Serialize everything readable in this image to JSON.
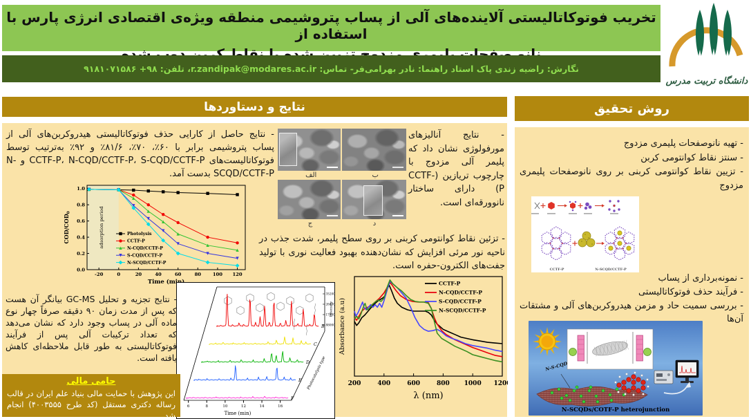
{
  "header": {
    "title_line1": "تخریب فوتوکاتالیستی آلاینده‌های آلی از پساب پتروشیمی منطقه ویژه‌ی اقتصادی انرژی پارس با استفاده از",
    "title_line2": "نانو صفحات پلیمری مزدوج تزیین شده با نقاط کربن دوپ شده",
    "byline": "نگارش: راضیه زندی پاک استاد راهنما: نادر بهرامی‌فر- تماس: r.zandipak@modares.ac.ir، تلفن: ۹۸+ ۹۱۸۱۰۷۱۵۸۶",
    "logo_text": "دانشگاه تربیت مدرس"
  },
  "left_section": {
    "header": "نتایج و دستاوردها",
    "p_removal": "- نتایج حاصل از کارایی حذف فوتوکاتالیستی هیدروکربن‌های آلی از پساب پتروشیمی برابر با ۶۰٪، ۷۰٪، ۸۱/۶٪ و ۹۲٪ به‌ترتیب توسط فوتوکاتالیست‌های CCTF-P، N-CQD/CCTF-P، S-CQD/CCTF-P و N-SCQD/CCTF-P بدست آمد.",
    "p_morphology": "- نتایج آنالیزهای مورفولوژی نشان داد که پلیمر آلی مزدوج با چارچوب تریازین (CCTF-P) دارای ساختار نانوورقه‌ای است.",
    "p_decoration": "- تزئین نقاط کوانتومی کربنی بر روی سطح پلیمر، شدت جذب در ناحیه نور مرئی افزایش که نشان‌دهنده بهبود فعالیت نوری با تولید جفت‌های الکترون-حفره است.",
    "p_gcms": "- نتایج تجزیه و تحلیل GC-MS بیانگر آن هست که پس از مدت زمان ۹۰ دقیقه صرفاً چهار نوع ماده آلی در پساب وجود دارد که نشان می‌دهد که تعداد ترکیبات آلی پس از فرآیند فوتوکاتالیستی به طور قابل ملاحظه‌ای کاهش یافته است.",
    "sem_labels": [
      "الف",
      "ب",
      "ج",
      "د"
    ],
    "funding": {
      "title": "حامی مالی",
      "body": "این پژوهش با حمایت مالی بنیاد علم ایران در قالب رساله دکتری مستقل (کد طرح ۴۰۰۳۵۵۵) انجام شد."
    }
  },
  "right_section": {
    "header": "روش تحقیق",
    "bullets_top": [
      "- تهیه نانوصفحات پلیمری مزدوج",
      "- سنتز نقاط کوانتومی کربن",
      "- تزیین نقاط کوانتومی کربنی بر روی نانوصفحات پلیمری مزدوج"
    ],
    "bullets_bottom": [
      "- نمونه‌برداری از پساب",
      "- فرآیند حذف فوتوکاتالیستی",
      "- بررسی سمیت حاد و مزمن هیدروکربن‌های آلی و مشتقات آن‌ها"
    ],
    "scheme_labels": {
      "left": "CCTF-P",
      "right": "N-SCQD/CCTF-P"
    },
    "nscqd_label": "N-S-CQD",
    "hetero_caption": "N-SCQDs/COTF-P heterojunction"
  },
  "colors": {
    "band_green": "#8dc653",
    "band_dark_green": "#42601d",
    "byline_green": "#8fdc4e",
    "section_gold": "#b2880e",
    "panel_wheat": "#fae3a8",
    "funding_title_yellow": "#ffff00"
  },
  "chart_data": [
    {
      "id": "cod",
      "type": "line",
      "xlabel": "Time (min)",
      "ylabel": "COD/COD",
      "ylabel_sub": "0",
      "xlim": [
        -32,
        128
      ],
      "ylim": [
        0,
        1.04
      ],
      "xticks": [
        -20,
        0,
        20,
        40,
        60,
        80,
        100,
        120
      ],
      "yticks": [
        0,
        0.2,
        0.4,
        0.6,
        0.8,
        1.0
      ],
      "adsorption_region": {
        "from": -32,
        "to": 0,
        "label": "adsorption period"
      },
      "x": [
        -30,
        0,
        15,
        30,
        45,
        60,
        90,
        120
      ],
      "series": [
        {
          "name": "Photolysis",
          "color": "#000000",
          "marker": "square",
          "values": [
            0.99,
            0.985,
            0.98,
            0.97,
            0.96,
            0.95,
            0.94,
            0.925
          ]
        },
        {
          "name": "CCTF-P",
          "color": "#f00000",
          "marker": "circle",
          "values": [
            0.99,
            0.985,
            0.92,
            0.8,
            0.68,
            0.58,
            0.4,
            0.33
          ]
        },
        {
          "name": "N-CQD/CCTF-P",
          "color": "#35c435",
          "marker": "triangle-up",
          "values": [
            0.99,
            0.985,
            0.88,
            0.72,
            0.59,
            0.44,
            0.3,
            0.24
          ]
        },
        {
          "name": "S-CQD/CCTF-P",
          "color": "#3535e0",
          "marker": "triangle-down",
          "values": [
            0.99,
            0.985,
            0.79,
            0.63,
            0.48,
            0.32,
            0.2,
            0.14
          ]
        },
        {
          "name": "N-SCQD/CCTF-P",
          "color": "#00dce8",
          "marker": "diamond",
          "values": [
            0.99,
            0.985,
            0.76,
            0.56,
            0.36,
            0.2,
            0.09,
            0.05
          ]
        }
      ]
    },
    {
      "id": "gcms",
      "type": "line",
      "projection": "3d-waterfall",
      "xlabel": "Time (min)",
      "xticks": [
        6,
        8,
        10,
        12,
        14,
        16
      ],
      "intensity_label": "Intensity",
      "intensity_ticks": [
        352000,
        264000,
        176000,
        88000
      ],
      "depth_label": "Photocatalysis type",
      "traces": [
        {
          "label": "B",
          "color": "#f00000",
          "peaks": [
            [
              6.2,
              0.05
            ],
            [
              6.9,
              0.97
            ],
            [
              7.5,
              0.07
            ],
            [
              8.2,
              0.12
            ],
            [
              8.7,
              0.08
            ],
            [
              9.4,
              0.88
            ],
            [
              10.0,
              0.12
            ],
            [
              10.5,
              0.28
            ],
            [
              11.0,
              0.62
            ],
            [
              11.5,
              0.15
            ],
            [
              12.0,
              0.78
            ],
            [
              12.7,
              0.12
            ],
            [
              13.3,
              0.18
            ],
            [
              13.9,
              0.76
            ],
            [
              14.6,
              0.1
            ],
            [
              15.2,
              0.52
            ],
            [
              15.9,
              0.08
            ],
            [
              16.4,
              0.4
            ]
          ]
        },
        {
          "label": "C",
          "color": "#efe000",
          "peaks": [
            [
              6.5,
              0.05
            ],
            [
              7.3,
              0.08
            ],
            [
              8.4,
              0.06
            ],
            [
              9.6,
              0.07
            ],
            [
              10.8,
              0.06
            ],
            [
              12.2,
              0.1
            ],
            [
              13.1,
              0.14
            ],
            [
              14.0,
              0.22
            ],
            [
              14.9,
              0.18
            ],
            [
              15.8,
              0.12
            ],
            [
              16.3,
              0.08
            ]
          ]
        },
        {
          "label": "D",
          "color": "#00b200",
          "peaks": [
            [
              6.4,
              0.06
            ],
            [
              7.6,
              0.07
            ],
            [
              8.9,
              0.08
            ],
            [
              10.1,
              0.1
            ],
            [
              11.4,
              0.08
            ],
            [
              12.6,
              0.12
            ],
            [
              13.4,
              0.3
            ],
            [
              13.9,
              0.22
            ],
            [
              14.6,
              0.34
            ],
            [
              15.4,
              0.14
            ],
            [
              16.2,
              0.1
            ]
          ]
        },
        {
          "label": "E",
          "color": "#1e5eff",
          "peaks": [
            [
              6.3,
              0.05
            ],
            [
              7.2,
              0.06
            ],
            [
              8.5,
              0.07
            ],
            [
              9.8,
              0.08
            ],
            [
              10.3,
              0.45
            ],
            [
              11.6,
              0.08
            ],
            [
              12.8,
              0.1
            ],
            [
              13.7,
              0.12
            ],
            [
              14.8,
              0.42
            ],
            [
              15.6,
              0.1
            ],
            [
              16.3,
              0.08
            ]
          ]
        },
        {
          "label": "F",
          "color": "#ff2ad4",
          "peaks": [
            [
              6.5,
              0.04
            ],
            [
              7.8,
              0.05
            ],
            [
              9.0,
              0.06
            ],
            [
              10.4,
              0.05
            ],
            [
              11.7,
              0.06
            ],
            [
              13.0,
              0.07
            ],
            [
              14.3,
              0.08
            ],
            [
              15.5,
              0.06
            ],
            [
              16.2,
              0.05
            ]
          ]
        }
      ]
    },
    {
      "id": "absorbance",
      "type": "line",
      "xlabel": "λ (nm)",
      "ylabel": "Absorbance (a.u)",
      "xlim": [
        200,
        1200
      ],
      "xticks": [
        200,
        400,
        600,
        800,
        1000,
        1200
      ],
      "series": [
        {
          "name": "CCTF-P",
          "color": "#000000",
          "points": [
            [
              200,
              0.42
            ],
            [
              215,
              0.39
            ],
            [
              230,
              0.41
            ],
            [
              250,
              0.45
            ],
            [
              270,
              0.47
            ],
            [
              300,
              0.51
            ],
            [
              330,
              0.55
            ],
            [
              360,
              0.58
            ],
            [
              390,
              0.6
            ],
            [
              410,
              0.62
            ],
            [
              425,
              0.68
            ],
            [
              435,
              0.7
            ],
            [
              450,
              0.66
            ],
            [
              470,
              0.6
            ],
            [
              490,
              0.56
            ],
            [
              520,
              0.53
            ],
            [
              560,
              0.51
            ],
            [
              600,
              0.5
            ],
            [
              640,
              0.5
            ],
            [
              680,
              0.5
            ],
            [
              700,
              0.49
            ],
            [
              720,
              0.47
            ],
            [
              740,
              0.43
            ],
            [
              760,
              0.4
            ],
            [
              800,
              0.36
            ],
            [
              840,
              0.34
            ],
            [
              880,
              0.32
            ],
            [
              920,
              0.3
            ],
            [
              960,
              0.29
            ],
            [
              1000,
              0.28
            ],
            [
              1050,
              0.27
            ],
            [
              1100,
              0.26
            ],
            [
              1150,
              0.255
            ],
            [
              1200,
              0.25
            ]
          ]
        },
        {
          "name": "N-CQD/CCTF-P",
          "color": "#e8000b",
          "points": [
            [
              200,
              0.45
            ],
            [
              215,
              0.43
            ],
            [
              230,
              0.46
            ],
            [
              250,
              0.5
            ],
            [
              270,
              0.52
            ],
            [
              290,
              0.53
            ],
            [
              310,
              0.54
            ],
            [
              340,
              0.57
            ],
            [
              370,
              0.6
            ],
            [
              400,
              0.64
            ],
            [
              420,
              0.68
            ],
            [
              440,
              0.72
            ],
            [
              455,
              0.7
            ],
            [
              480,
              0.66
            ],
            [
              510,
              0.62
            ],
            [
              550,
              0.59
            ],
            [
              590,
              0.575
            ],
            [
              630,
              0.57
            ],
            [
              670,
              0.57
            ],
            [
              700,
              0.565
            ],
            [
              720,
              0.52
            ],
            [
              740,
              0.45
            ],
            [
              760,
              0.4
            ],
            [
              790,
              0.35
            ],
            [
              820,
              0.32
            ],
            [
              850,
              0.3
            ],
            [
              880,
              0.28
            ],
            [
              920,
              0.26
            ],
            [
              960,
              0.24
            ],
            [
              1000,
              0.22
            ],
            [
              1050,
              0.2
            ],
            [
              1100,
              0.18
            ],
            [
              1150,
              0.16
            ],
            [
              1200,
              0.15
            ]
          ]
        },
        {
          "name": "S-CQD/CCTF-P",
          "color": "#4646ff",
          "points": [
            [
              200,
              0.5
            ],
            [
              210,
              0.46
            ],
            [
              225,
              0.49
            ],
            [
              240,
              0.53
            ],
            [
              255,
              0.57
            ],
            [
              265,
              0.53
            ],
            [
              280,
              0.51
            ],
            [
              295,
              0.53
            ],
            [
              310,
              0.55
            ],
            [
              325,
              0.53
            ],
            [
              340,
              0.55
            ],
            [
              355,
              0.53
            ],
            [
              370,
              0.56
            ],
            [
              385,
              0.53
            ],
            [
              400,
              0.58
            ],
            [
              420,
              0.66
            ],
            [
              440,
              0.73
            ],
            [
              460,
              0.71
            ],
            [
              490,
              0.68
            ],
            [
              520,
              0.64
            ],
            [
              550,
              0.6
            ],
            [
              580,
              0.53
            ],
            [
              610,
              0.45
            ],
            [
              640,
              0.39
            ],
            [
              670,
              0.36
            ],
            [
              700,
              0.345
            ],
            [
              730,
              0.35
            ],
            [
              760,
              0.36
            ],
            [
              790,
              0.34
            ],
            [
              820,
              0.31
            ],
            [
              860,
              0.29
            ],
            [
              900,
              0.275
            ],
            [
              950,
              0.25
            ],
            [
              1000,
              0.235
            ],
            [
              1050,
              0.225
            ],
            [
              1100,
              0.215
            ],
            [
              1150,
              0.2
            ],
            [
              1200,
              0.19
            ]
          ]
        },
        {
          "name": "N-SCQD/CCTF-P",
          "color": "#3a8f22",
          "points": [
            [
              200,
              0.44
            ],
            [
              215,
              0.46
            ],
            [
              230,
              0.44
            ],
            [
              245,
              0.48
            ],
            [
              260,
              0.53
            ],
            [
              272,
              0.56
            ],
            [
              285,
              0.51
            ],
            [
              300,
              0.52
            ],
            [
              320,
              0.55
            ],
            [
              340,
              0.57
            ],
            [
              360,
              0.585
            ],
            [
              380,
              0.575
            ],
            [
              400,
              0.6
            ],
            [
              420,
              0.68
            ],
            [
              440,
              0.74
            ],
            [
              460,
              0.71
            ],
            [
              490,
              0.68
            ],
            [
              520,
              0.655
            ],
            [
              550,
              0.62
            ],
            [
              580,
              0.59
            ],
            [
              610,
              0.575
            ],
            [
              640,
              0.57
            ],
            [
              670,
              0.57
            ],
            [
              700,
              0.56
            ],
            [
              720,
              0.52
            ],
            [
              740,
              0.42
            ],
            [
              760,
              0.33
            ],
            [
              790,
              0.29
            ],
            [
              820,
              0.27
            ],
            [
              850,
              0.25
            ],
            [
              880,
              0.23
            ],
            [
              920,
              0.21
            ],
            [
              960,
              0.19
            ],
            [
              1000,
              0.165
            ],
            [
              1050,
              0.15
            ],
            [
              1100,
              0.135
            ],
            [
              1150,
              0.12
            ],
            [
              1200,
              0.11
            ]
          ]
        }
      ]
    }
  ]
}
